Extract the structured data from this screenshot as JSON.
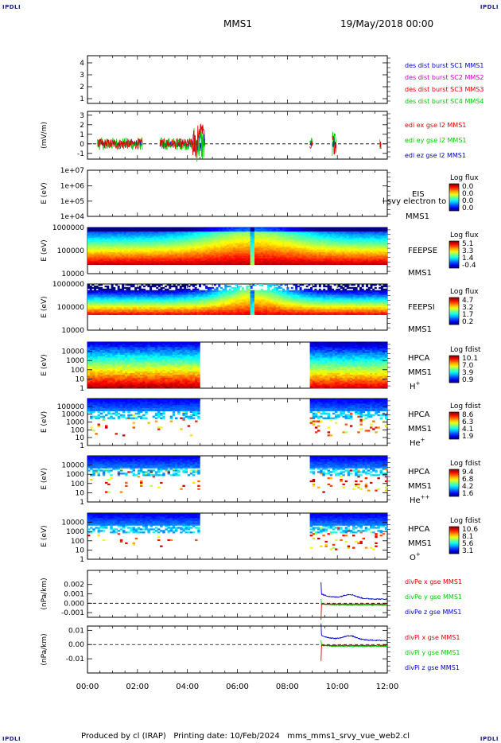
{
  "corner_labels": {
    "tl": "IPDLI",
    "tr": "IPDLI",
    "bl": "IPDLI",
    "br": "IPDLI"
  },
  "header": {
    "mission": "MMS1",
    "date": "19/May/2018 00:00"
  },
  "footer": {
    "text": "Produced by cl (IRAP)   Printing date: 10/Feb/2024   mms_mms1_srvy_vue_web2.cl"
  },
  "colors": {
    "red": "#e00000",
    "green": "#00cc00",
    "blue": "#0000cc",
    "magenta": "#cc00cc"
  },
  "chart_data": [
    {
      "type": "line",
      "id": "p1",
      "ylabel": "",
      "ylim": [
        0.6,
        4.6
      ],
      "yticks": [
        "1",
        "2",
        "3",
        "4"
      ],
      "legend": [
        {
          "text": "des dist burst SC1 MMS1",
          "color": "#0000cc"
        },
        {
          "text": "des dist burst SC2 MMS2",
          "color": "#cc00cc"
        },
        {
          "text": "des dist burst SC3 MMS3",
          "color": "#e00000"
        },
        {
          "text": "des dist burst SC4 MMS4",
          "color": "#00cc00"
        }
      ]
    },
    {
      "type": "line",
      "id": "p2",
      "ylabel": "(mV/m)",
      "ylim": [
        -1.6,
        3.4
      ],
      "yticks": [
        "-1",
        "0",
        "1",
        "2",
        "3"
      ],
      "zero_line": true,
      "series": [
        {
          "name": "edi ex gse l2 MMS1",
          "color": "#e00000"
        },
        {
          "name": "edi ey gse l2 MMS1",
          "color": "#00cc00"
        },
        {
          "name": "edi ez gse l2 MMS1",
          "color": "#0000cc"
        }
      ],
      "data_intervals_h": [
        [
          0.4,
          2.2
        ],
        [
          2.9,
          4.7
        ],
        [
          8.9,
          9.0
        ],
        [
          9.8,
          9.95
        ],
        [
          11.7,
          11.75
        ]
      ]
    },
    {
      "type": "heatmap",
      "id": "p3",
      "ylabel": "E (eV)",
      "yticks": [
        "1e+04",
        "1e+05",
        "1e+06",
        "1e+07"
      ],
      "instrument": "EIS",
      "sc": "MMS1",
      "overlay_text": "l svy electron to",
      "cbar": {
        "title": "Log flux",
        "ticks": [
          "0.0",
          "0.0",
          "0.0",
          "0.0"
        ]
      }
    },
    {
      "type": "heatmap",
      "id": "p4",
      "ylabel": "E (eV)",
      "yticks": [
        "10000",
        "100000",
        "1000000"
      ],
      "instrument": "FEEPSE",
      "sc": "MMS1",
      "cbar": {
        "title": "Log flux",
        "ticks": [
          "5.1",
          "3.3",
          "1.4",
          "-0.4"
        ]
      }
    },
    {
      "type": "heatmap",
      "id": "p5",
      "ylabel": "E (eV)",
      "yticks": [
        "10000",
        "100000",
        "1000000"
      ],
      "instrument": "FEEPSI",
      "sc": "MMS1",
      "cbar": {
        "title": "Log flux",
        "ticks": [
          "4.7",
          "3.2",
          "1.7",
          "0.2"
        ]
      }
    },
    {
      "type": "heatmap",
      "id": "p6",
      "ylabel": "E (eV)",
      "yticks": [
        "1",
        "10",
        "100",
        "1000",
        "10000"
      ],
      "instrument": "HPCA",
      "sc": "MMS1",
      "species": "H",
      "charge": "+",
      "cbar": {
        "title": "Log fdist",
        "ticks": [
          "10.1",
          "7.0",
          "3.9",
          "0.9"
        ]
      },
      "data_intervals_h": [
        [
          0.0,
          4.5
        ],
        [
          8.9,
          12.0
        ]
      ]
    },
    {
      "type": "heatmap",
      "id": "p7",
      "ylabel": "E (eV)",
      "yticks": [
        "1",
        "10",
        "100",
        "1000",
        "10000",
        "100000"
      ],
      "instrument": "HPCA",
      "sc": "MMS1",
      "species": "He",
      "charge": "+",
      "cbar": {
        "title": "Log fdist",
        "ticks": [
          "8.6",
          "6.3",
          "4.1",
          "1.9"
        ]
      },
      "data_intervals_h": [
        [
          0.0,
          4.5
        ],
        [
          8.9,
          12.0
        ]
      ]
    },
    {
      "type": "heatmap",
      "id": "p8",
      "ylabel": "E (eV)",
      "yticks": [
        "1",
        "10",
        "100",
        "1000",
        "10000"
      ],
      "instrument": "HPCA",
      "sc": "MMS1",
      "species": "He",
      "charge": "++",
      "cbar": {
        "title": "Log fdist",
        "ticks": [
          "9.4",
          "6.8",
          "4.2",
          "1.6"
        ]
      },
      "data_intervals_h": [
        [
          0.0,
          4.5
        ],
        [
          8.9,
          12.0
        ]
      ]
    },
    {
      "type": "heatmap",
      "id": "p9",
      "ylabel": "E (eV)",
      "yticks": [
        "1",
        "10",
        "100",
        "1000",
        "10000"
      ],
      "instrument": "HPCA",
      "sc": "MMS1",
      "species": "O",
      "charge": "+",
      "cbar": {
        "title": "Log fdist",
        "ticks": [
          "10.6",
          "8.1",
          "5.6",
          "3.1"
        ]
      },
      "data_intervals_h": [
        [
          0.0,
          4.5
        ],
        [
          8.9,
          12.0
        ]
      ]
    },
    {
      "type": "line",
      "id": "p10",
      "ylabel": "(nPa/km)",
      "ylim": [
        -0.0015,
        0.0035
      ],
      "yticks": [
        "-0.001",
        "0.000",
        "0.001",
        "0.002"
      ],
      "zero_line": true,
      "series": [
        {
          "name": "divPe x gse MMS1",
          "color": "#e00000"
        },
        {
          "name": "divPe y gse MMS1",
          "color": "#00cc00"
        },
        {
          "name": "divPe z gse MMS1",
          "color": "#0000cc"
        }
      ],
      "data_intervals_h": [
        [
          9.35,
          12.0
        ]
      ]
    },
    {
      "type": "line",
      "id": "p11",
      "ylabel": "(nPa/km)",
      "ylim": [
        -0.02,
        0.013
      ],
      "yticks": [
        "-0.01",
        "0.00",
        "0.01"
      ],
      "zero_line": true,
      "series": [
        {
          "name": "divPi x gse MMS1",
          "color": "#e00000"
        },
        {
          "name": "divPi y gse MMS1",
          "color": "#00cc00"
        },
        {
          "name": "divPi z gse MMS1",
          "color": "#0000cc"
        }
      ],
      "data_intervals_h": [
        [
          9.35,
          12.0
        ]
      ]
    }
  ],
  "xaxis": {
    "ticks": [
      "00:00",
      "02:00",
      "04:00",
      "06:00",
      "08:00",
      "10:00",
      "12:00"
    ],
    "range_h": [
      0,
      12
    ]
  }
}
